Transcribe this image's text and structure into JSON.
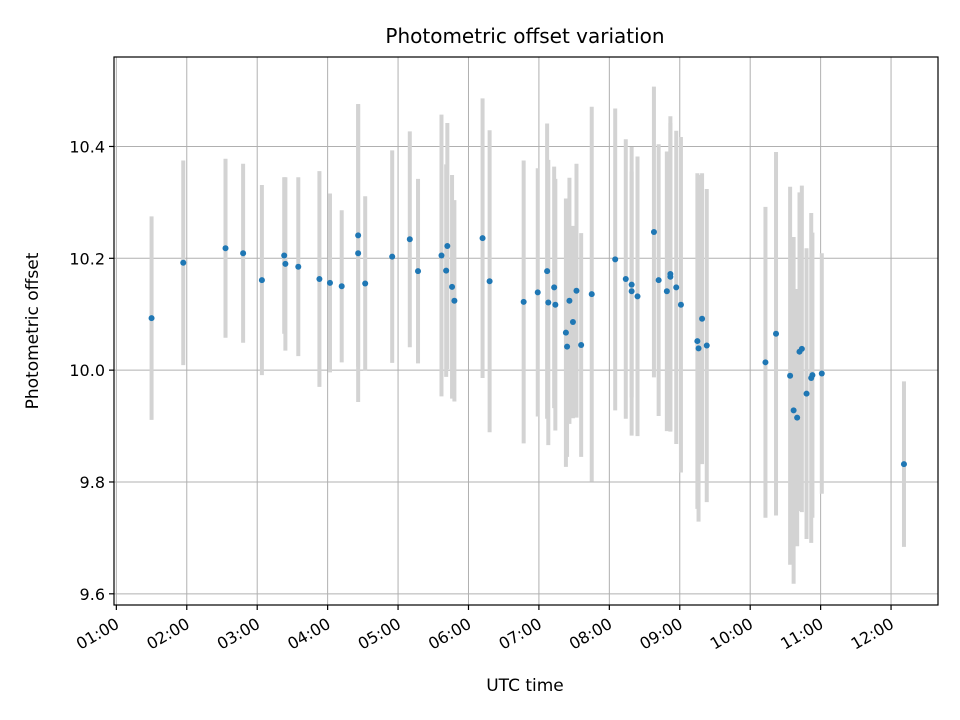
{
  "chart_data": {
    "type": "scatter",
    "title": "Photometric offset variation",
    "xlabel": "UTC time",
    "ylabel": "Photometric offset",
    "x_unit": "hours UTC",
    "xlim": [
      "00:58",
      "12:40"
    ],
    "ylim": [
      9.58,
      10.56
    ],
    "xticks": [
      "01:00",
      "02:00",
      "03:00",
      "04:00",
      "05:00",
      "06:00",
      "07:00",
      "08:00",
      "09:00",
      "10:00",
      "11:00",
      "12:00"
    ],
    "yticks": [
      "9.6",
      "9.8",
      "10.0",
      "10.2",
      "10.4"
    ],
    "grid": true,
    "colors": {
      "points": "#1f77b4",
      "errorbars": "#d3d3d3",
      "grid": "#b0b0b0"
    },
    "series": [
      {
        "x": [
          "01:30",
          "01:57",
          "02:33",
          "02:48",
          "03:04",
          "03:23",
          "03:24",
          "03:35",
          "03:53",
          "04:02",
          "04:12",
          "04:26",
          "04:26",
          "04:32",
          "04:55",
          "05:10",
          "05:17",
          "05:37",
          "05:41",
          "05:42",
          "05:46",
          "05:48",
          "06:12",
          "06:18",
          "06:47",
          "06:59",
          "07:07",
          "07:08",
          "07:13",
          "07:14",
          "07:23",
          "07:24",
          "07:26",
          "07:29",
          "07:32",
          "07:36",
          "07:45",
          "08:05",
          "08:14",
          "08:19",
          "08:19",
          "08:24",
          "08:38",
          "08:42",
          "08:49",
          "08:52",
          "08:52",
          "08:57",
          "09:01",
          "09:15",
          "09:16",
          "09:19",
          "09:23",
          "10:13",
          "10:22",
          "10:34",
          "10:37",
          "10:40",
          "10:42",
          "10:44",
          "10:48",
          "10:52",
          "10:53",
          "11:01",
          "12:11"
        ],
        "y": [
          10.093,
          10.192,
          10.218,
          10.209,
          10.161,
          10.205,
          10.19,
          10.185,
          10.163,
          10.156,
          10.15,
          10.241,
          10.209,
          10.155,
          10.203,
          10.234,
          10.177,
          10.205,
          10.178,
          10.222,
          10.149,
          10.124,
          10.236,
          10.159,
          10.122,
          10.139,
          10.177,
          10.121,
          10.148,
          10.117,
          10.067,
          10.042,
          10.124,
          10.086,
          10.142,
          10.045,
          10.136,
          10.198,
          10.163,
          10.141,
          10.153,
          10.132,
          10.247,
          10.161,
          10.141,
          10.167,
          10.172,
          10.148,
          10.117,
          10.052,
          10.039,
          10.092,
          10.044,
          10.014,
          10.065,
          9.99,
          9.928,
          9.915,
          10.033,
          10.038,
          9.958,
          9.986,
          9.991,
          9.994,
          9.832
        ],
        "err": [
          0.182,
          0.183,
          0.16,
          0.16,
          0.17,
          0.14,
          0.155,
          0.16,
          0.193,
          0.16,
          0.136,
          0.235,
          0.266,
          0.156,
          0.19,
          0.193,
          0.165,
          0.252,
          0.19,
          0.22,
          0.2,
          0.18,
          0.25,
          0.27,
          0.253,
          0.222,
          0.264,
          0.255,
          0.216,
          0.225,
          0.24,
          0.197,
          0.22,
          0.172,
          0.227,
          0.2,
          0.335,
          0.27,
          0.25,
          0.258,
          0.202,
          0.25,
          0.26,
          0.243,
          0.25,
          0.275,
          0.282,
          0.28,
          0.3,
          0.3,
          0.31,
          0.26,
          0.28,
          0.278,
          0.325,
          0.338,
          0.31,
          0.23,
          0.285,
          0.292,
          0.26,
          0.295,
          0.255,
          0.215,
          0.148
        ]
      }
    ]
  }
}
